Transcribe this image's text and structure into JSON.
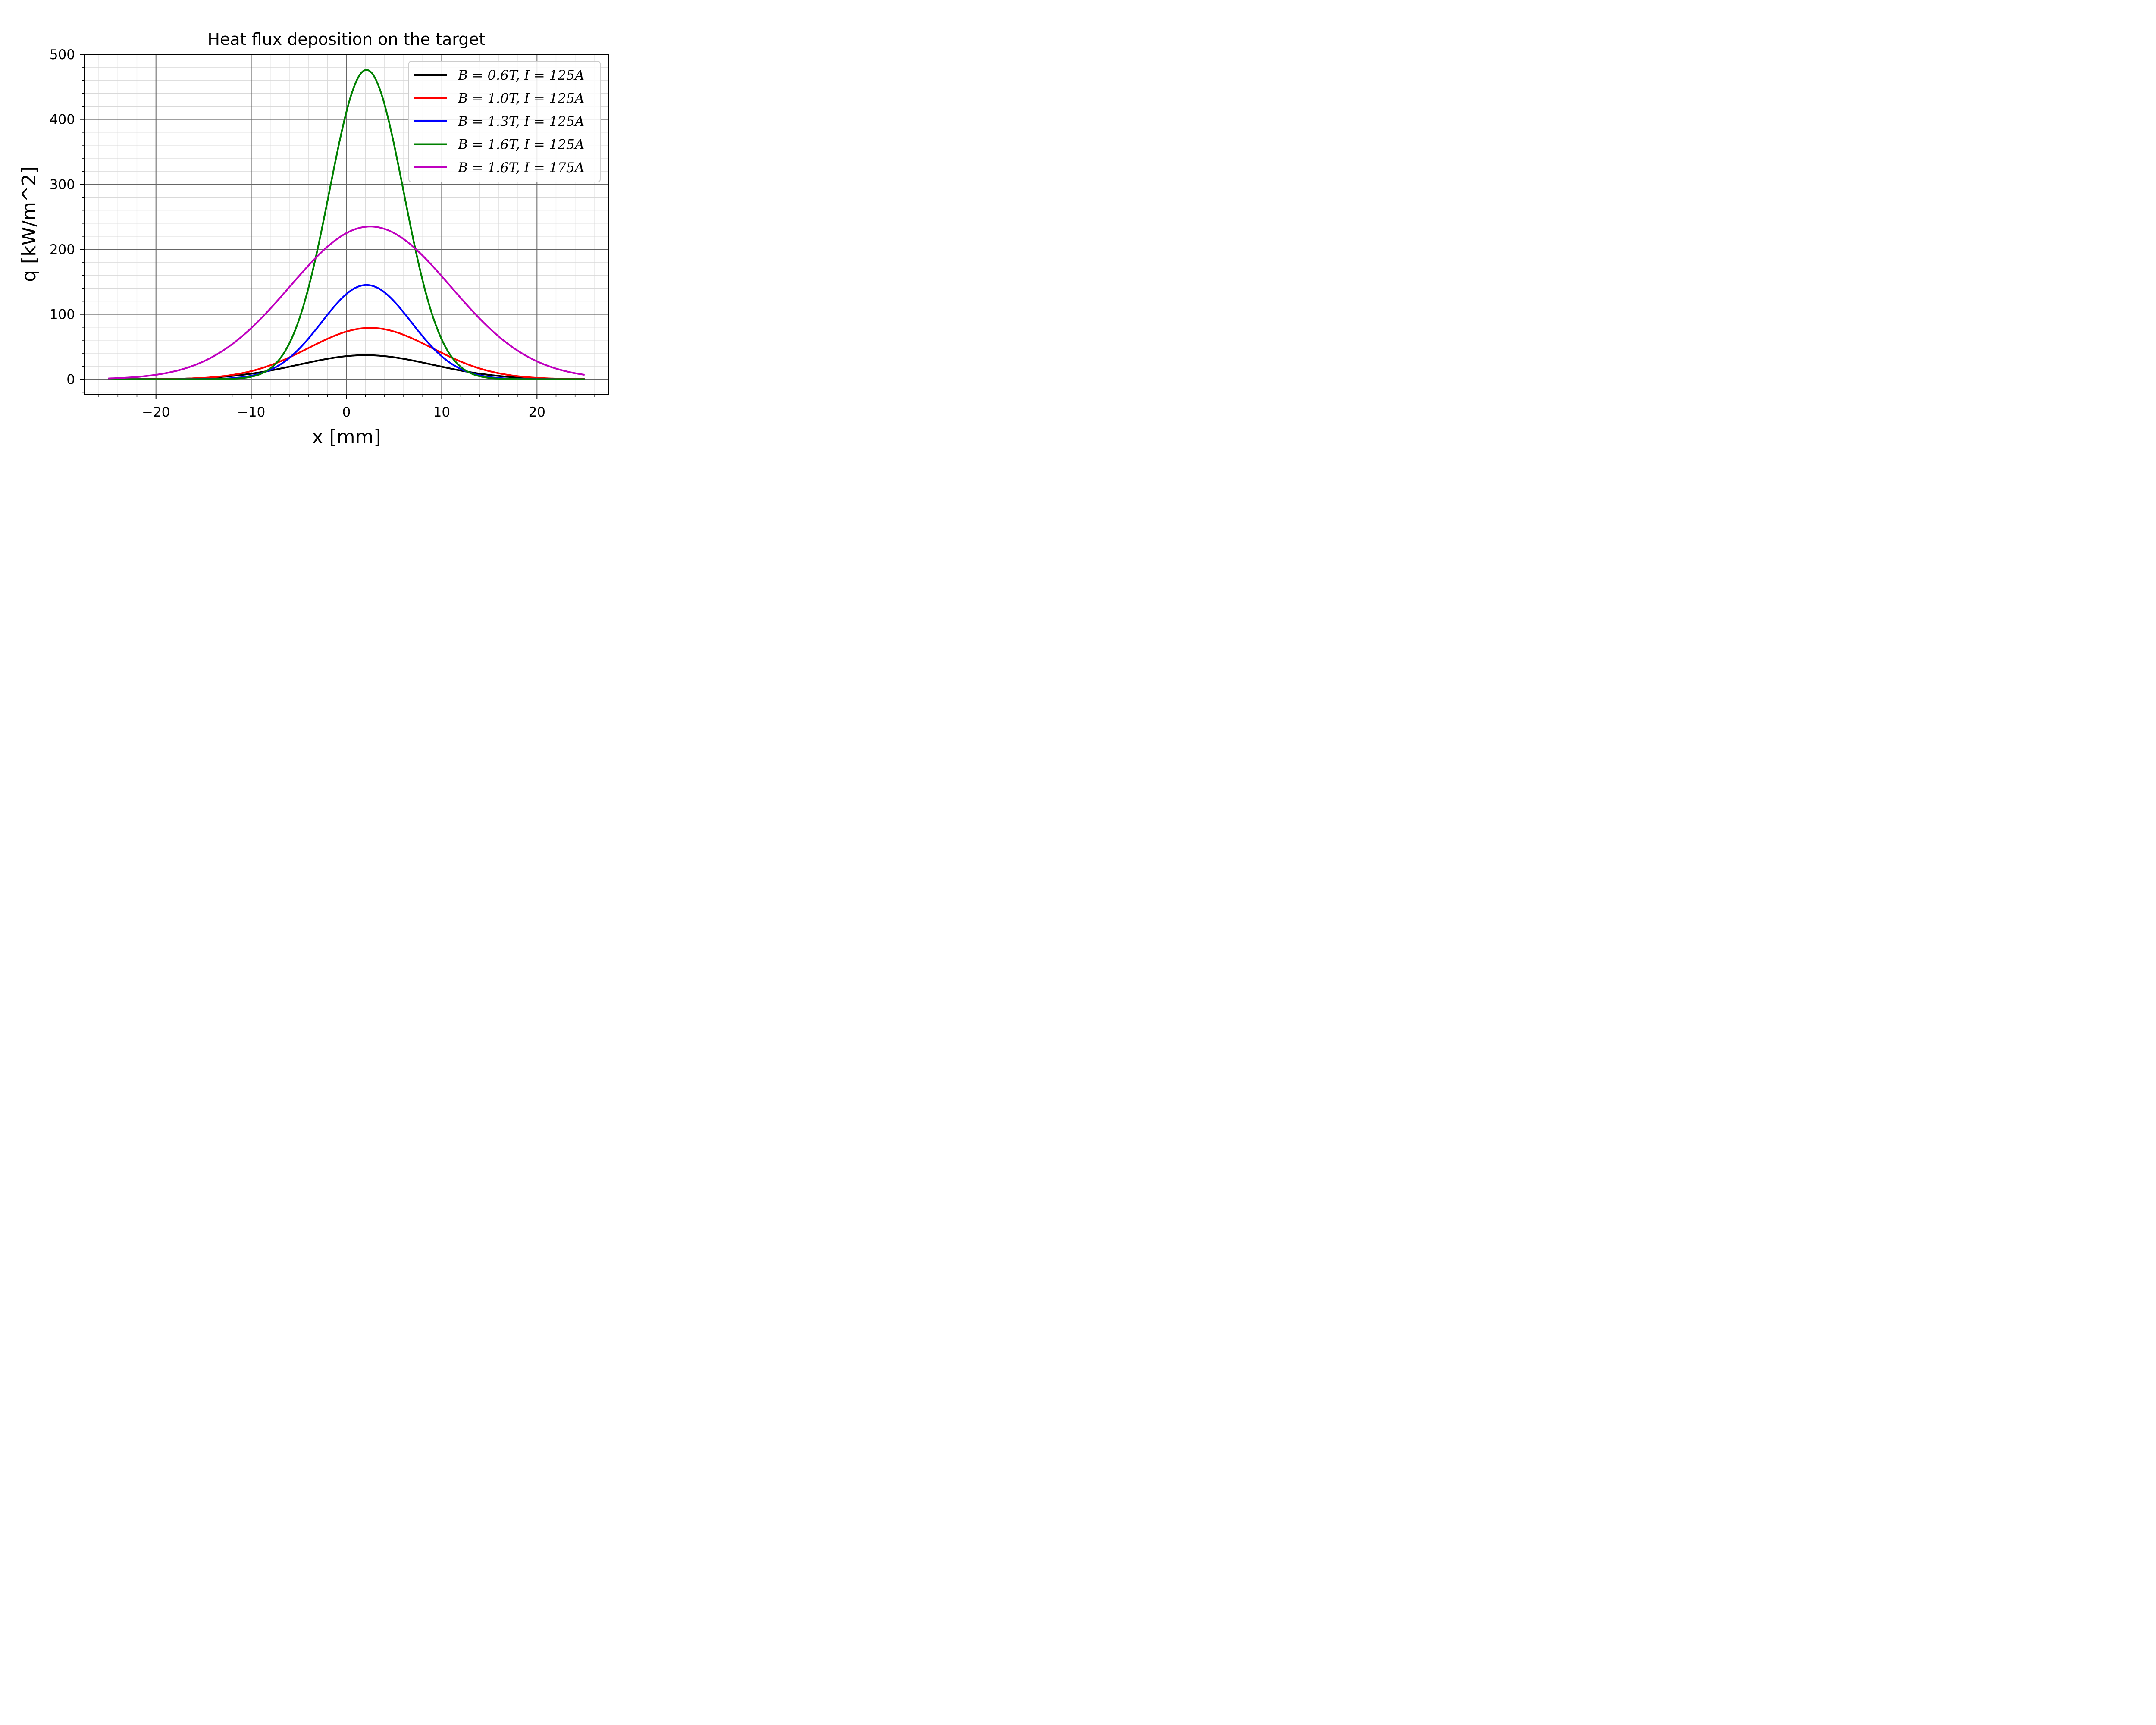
{
  "chart_data": {
    "type": "line",
    "title": "Heat flux deposition on the target",
    "xlabel": "x [mm]",
    "ylabel": "q [kW/m^2]",
    "xlim": [
      -27.5,
      27.5
    ],
    "ylim": [
      -23,
      500
    ],
    "x_major_ticks": [
      -20,
      -10,
      0,
      10,
      20
    ],
    "x_tick_labels": [
      "−20",
      "−10",
      "0",
      "10",
      "20"
    ],
    "y_major_ticks": [
      0,
      100,
      200,
      300,
      400,
      500
    ],
    "y_tick_labels": [
      "0",
      "100",
      "200",
      "300",
      "400",
      "500"
    ],
    "x_minor_step": 2,
    "y_minor_step": 20,
    "grid": "major and minor",
    "legend_position": "top-right",
    "x_range": [
      -25,
      25
    ],
    "series": [
      {
        "name": "B = 0.6T, I = 125A",
        "color": "#000000",
        "peak": 37,
        "center": 2.0,
        "sigma": 7.0
      },
      {
        "name": "B = 1.0T, I = 125A",
        "color": "#ff0000",
        "peak": 79,
        "center": 2.5,
        "sigma": 6.5
      },
      {
        "name": "B = 1.3T, I = 125A",
        "color": "#0000ff",
        "peak": 145,
        "center": 2.1,
        "sigma": 4.7
      },
      {
        "name": "B = 1.6T, I = 125A",
        "color": "#008000",
        "peak": 476,
        "center": 2.1,
        "sigma": 3.9
      },
      {
        "name": "B = 1.6T, I = 175A",
        "color": "#bf00bf",
        "peak": 235,
        "center": 2.5,
        "sigma": 8.45
      }
    ]
  }
}
